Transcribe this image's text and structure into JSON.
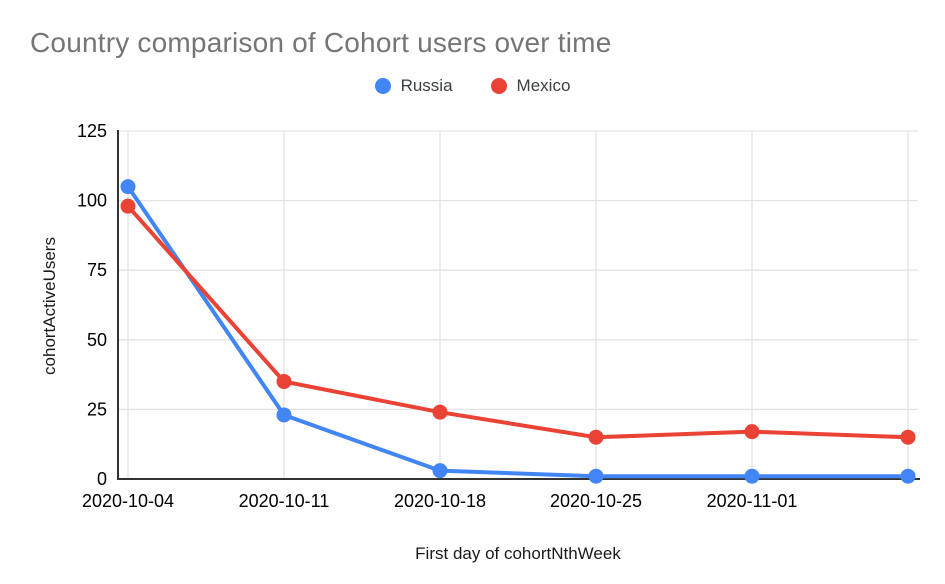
{
  "chart_data": {
    "type": "line",
    "title": "Country comparison of Cohort users over time",
    "xlabel": "First day of cohortNthWeek",
    "ylabel": "cohortActiveUsers",
    "x_tick_labels": [
      "2020-10-04",
      "2020-10-11",
      "2020-10-18",
      "2020-10-25",
      "2020-11-01",
      ""
    ],
    "y_ticks": [
      0,
      25,
      50,
      75,
      100,
      125
    ],
    "ylim": [
      0,
      125
    ],
    "grid": true,
    "legend_position": "top-center",
    "series": [
      {
        "name": "Russia",
        "color": "#4285F4",
        "values": [
          105,
          23,
          3,
          1,
          1,
          1
        ]
      },
      {
        "name": "Mexico",
        "color": "#EA4335",
        "values": [
          98,
          35,
          24,
          15,
          17,
          15
        ]
      }
    ],
    "colors": {
      "title_text": "#757575",
      "tick_text": "#000000",
      "gridline": "#e3e3e3",
      "axis_line": "#333333",
      "background": "#ffffff"
    }
  }
}
